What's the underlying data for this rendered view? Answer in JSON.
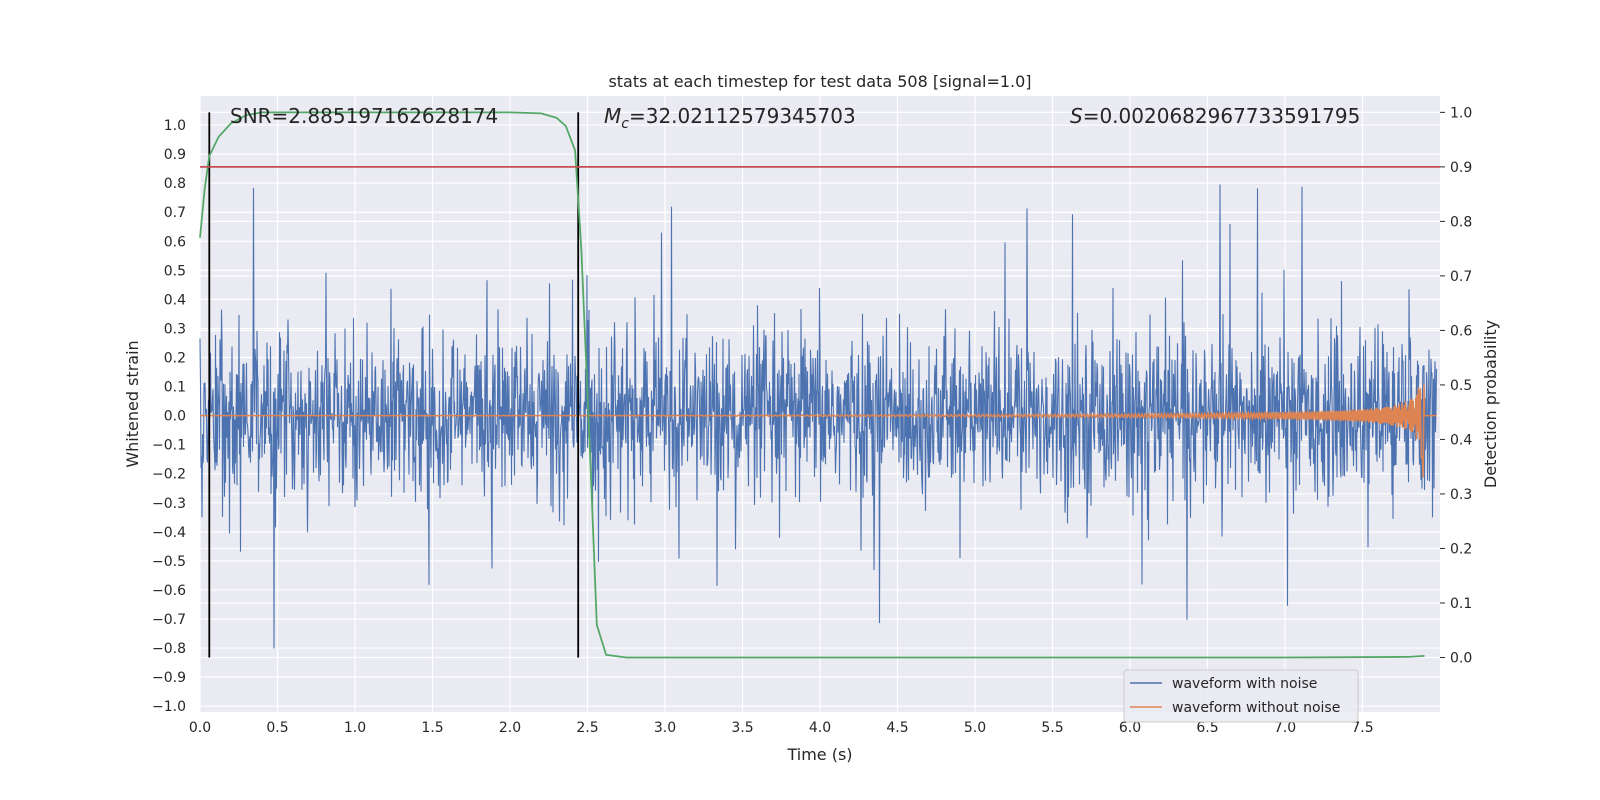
{
  "chart_data": {
    "type": "line",
    "title": "stats at each timestep for test data 508 [signal=1.0]",
    "xlabel": "Time (s)",
    "ylabel_left": "Whitened strain",
    "ylabel_right": "Detection probability",
    "xlim": [
      0.0,
      8.0
    ],
    "ylim_left": [
      -1.02,
      1.1
    ],
    "ylim_right": [
      -0.1,
      1.03
    ],
    "x_ticks": [
      "0.0",
      "0.5",
      "1.0",
      "1.5",
      "2.0",
      "2.5",
      "3.0",
      "3.5",
      "4.0",
      "4.5",
      "5.0",
      "5.5",
      "6.0",
      "6.5",
      "7.0",
      "7.5"
    ],
    "y_ticks_left": [
      "−1.0",
      "−0.9",
      "−0.8",
      "−0.7",
      "−0.6",
      "−0.5",
      "−0.4",
      "−0.3",
      "−0.2",
      "−0.1",
      "0.0",
      "0.1",
      "0.2",
      "0.3",
      "0.4",
      "0.5",
      "0.6",
      "0.7",
      "0.8",
      "0.9",
      "1.0"
    ],
    "y_ticks_right": [
      "0.0",
      "0.1",
      "0.2",
      "0.3",
      "0.4",
      "0.5",
      "0.6",
      "0.7",
      "0.8",
      "0.9",
      "1.0"
    ],
    "grid": true,
    "legend_position": "lower-right",
    "annotations": {
      "snr": "SNR=2.885197162628174",
      "mc_symbol": "M",
      "mc_subscript": "c",
      "mc_value": "=32.02112579345703",
      "s_symbol": "S",
      "s_value": "=0.0020682967733591795"
    },
    "threshold": {
      "axis": "right",
      "value": 0.9,
      "color": "#c44e52"
    },
    "vertical_markers": [
      0.06,
      2.44
    ],
    "series": [
      {
        "name": "waveform with noise",
        "axis": "left",
        "color": "#4c72b0",
        "description": "dense white noise, amplitude approx ±0.45 with spikes to ±0.9"
      },
      {
        "name": "waveform without noise",
        "axis": "left",
        "color": "#dd8452",
        "description": "chirp signal rising from ~0 to peak ~0.34 / -0.32 near t=7.88 s"
      },
      {
        "axis": "right",
        "color": "#55a868",
        "x": [
          0.0,
          0.03,
          0.06,
          0.12,
          0.2,
          0.3,
          0.4,
          0.6,
          1.0,
          1.5,
          2.0,
          2.2,
          2.3,
          2.36,
          2.42,
          2.46,
          2.52,
          2.56,
          2.62,
          2.75,
          3.0,
          5.0,
          7.0,
          7.8,
          7.9
        ],
        "values": [
          0.77,
          0.86,
          0.92,
          0.955,
          0.98,
          0.995,
          1.0,
          1.0,
          1.0,
          1.0,
          1.0,
          0.998,
          0.99,
          0.975,
          0.93,
          0.75,
          0.35,
          0.06,
          0.005,
          0.0,
          0.0,
          0.0,
          0.0,
          0.001,
          0.003
        ]
      }
    ]
  }
}
